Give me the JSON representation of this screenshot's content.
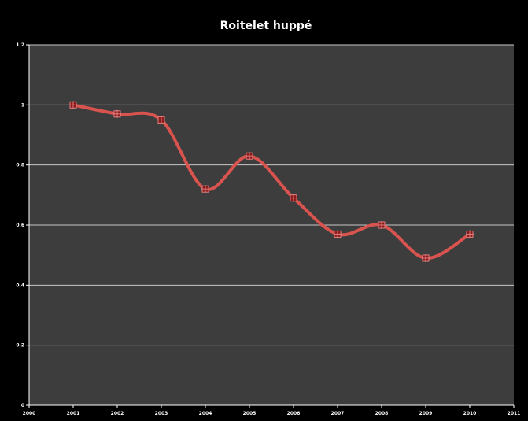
{
  "chart_data": {
    "type": "line",
    "title": "Roitelet huppé",
    "xlabel": "",
    "ylabel": "",
    "xlim": [
      2000,
      2011
    ],
    "ylim": [
      0,
      1.2
    ],
    "x_ticks": [
      "2000",
      "2001",
      "2002",
      "2003",
      "2004",
      "2005",
      "2006",
      "2007",
      "2008",
      "2009",
      "2010",
      "2011"
    ],
    "y_ticks": [
      "0",
      "0,2",
      "0,4",
      "0,6",
      "0,8",
      "1",
      "1,2"
    ],
    "grid": true,
    "legend": "none",
    "line_style": "smoothed",
    "marker": "square",
    "series": [
      {
        "x": [
          2001,
          2002,
          2003,
          2004,
          2005,
          2006,
          2007,
          2008,
          2009,
          2010
        ],
        "values": [
          1.0,
          0.97,
          0.95,
          0.72,
          0.83,
          0.69,
          0.57,
          0.6,
          0.49,
          0.57
        ]
      }
    ],
    "colors": {
      "background": "#000000",
      "plot_area": "#3d3d3d",
      "gridline": "#c8c8c8",
      "line": "#d9534f",
      "marker": "#8b1a1a",
      "axis": "#ffffff",
      "text": "#ffffff"
    }
  }
}
